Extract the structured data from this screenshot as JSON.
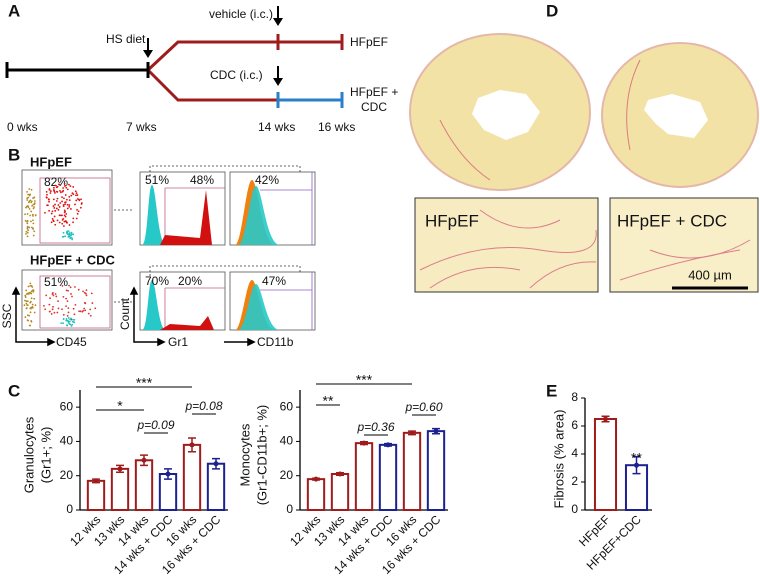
{
  "panel_labels": [
    "A",
    "B",
    "C",
    "D",
    "E"
  ],
  "timeline": {
    "diet": "HS diet",
    "vehicle": "vehicle (i.c.)",
    "cdc": "CDC (i.c.)",
    "group_hfpef": "HFpEF",
    "group_cdc": [
      "HFpEF +",
      "CDC"
    ],
    "times": [
      "0 wks",
      "7 wks",
      "14 wks",
      "16 wks"
    ]
  },
  "flow": {
    "rows": [
      {
        "label": "HFpEF",
        "gate": "82%",
        "gr1_low": "51%",
        "gr1_high": "48%",
        "cd11b": "42%"
      },
      {
        "label": "HFpEF + CDC",
        "gate": "51%",
        "gr1_low": "70%",
        "gr1_high": "20%",
        "cd11b": "47%"
      }
    ],
    "axes": {
      "ssc": "SSC",
      "cd45": "CD45",
      "count": "Count",
      "gr1": "Gr1",
      "cd11b": "CD11b"
    }
  },
  "histology": {
    "labels": [
      "HFpEF",
      "HFpEF + CDC"
    ],
    "scale_bar": "400 µm"
  },
  "chart_data": [
    {
      "type": "bar",
      "ylabel": [
        "Granulocytes",
        "(Gr1+; %)"
      ],
      "categories": [
        "12 wks",
        "13 wks",
        "14 wks",
        "14 wks + CDC",
        "16 wks",
        "16 wks + CDC"
      ],
      "values": [
        17,
        24,
        29,
        21,
        38,
        27
      ],
      "errors": [
        1,
        2,
        3,
        3,
        4,
        3
      ],
      "colors": [
        "#a01c1c",
        "#a01c1c",
        "#a01c1c",
        "#1c2190",
        "#a01c1c",
        "#1c2190"
      ],
      "ylim": [
        0,
        70
      ],
      "yticks": [
        0,
        20,
        40,
        60
      ],
      "annotations": [
        "*",
        "***",
        "p=0.09",
        "p=0.08"
      ]
    },
    {
      "type": "bar",
      "ylabel": [
        "Monocytes",
        "(Gr1-CD11b+; %)"
      ],
      "categories": [
        "12 wks",
        "13 wks",
        "14 wks",
        "14 wks + CDC",
        "16 wks",
        "16 wks + CDC"
      ],
      "values": [
        18,
        21,
        39,
        38,
        45,
        46
      ],
      "errors": [
        0.5,
        0.7,
        0.8,
        0.7,
        1,
        1.5
      ],
      "colors": [
        "#a01c1c",
        "#a01c1c",
        "#a01c1c",
        "#1c2190",
        "#a01c1c",
        "#1c2190"
      ],
      "ylim": [
        0,
        70
      ],
      "yticks": [
        0,
        20,
        40,
        60
      ],
      "annotations": [
        "**",
        "***",
        "p=0.36",
        "p=0.60"
      ]
    },
    {
      "type": "bar",
      "ylabel": [
        "Fibrosis (% area)"
      ],
      "categories": [
        "HFpEF",
        "HFpEF+CDC"
      ],
      "values": [
        6.5,
        3.2
      ],
      "errors": [
        0.2,
        0.6
      ],
      "colors": [
        "#a01c1c",
        "#1c2190"
      ],
      "ylim": [
        0,
        8
      ],
      "yticks": [
        0,
        2,
        4,
        6,
        8
      ],
      "annotations": [
        "**"
      ]
    }
  ]
}
